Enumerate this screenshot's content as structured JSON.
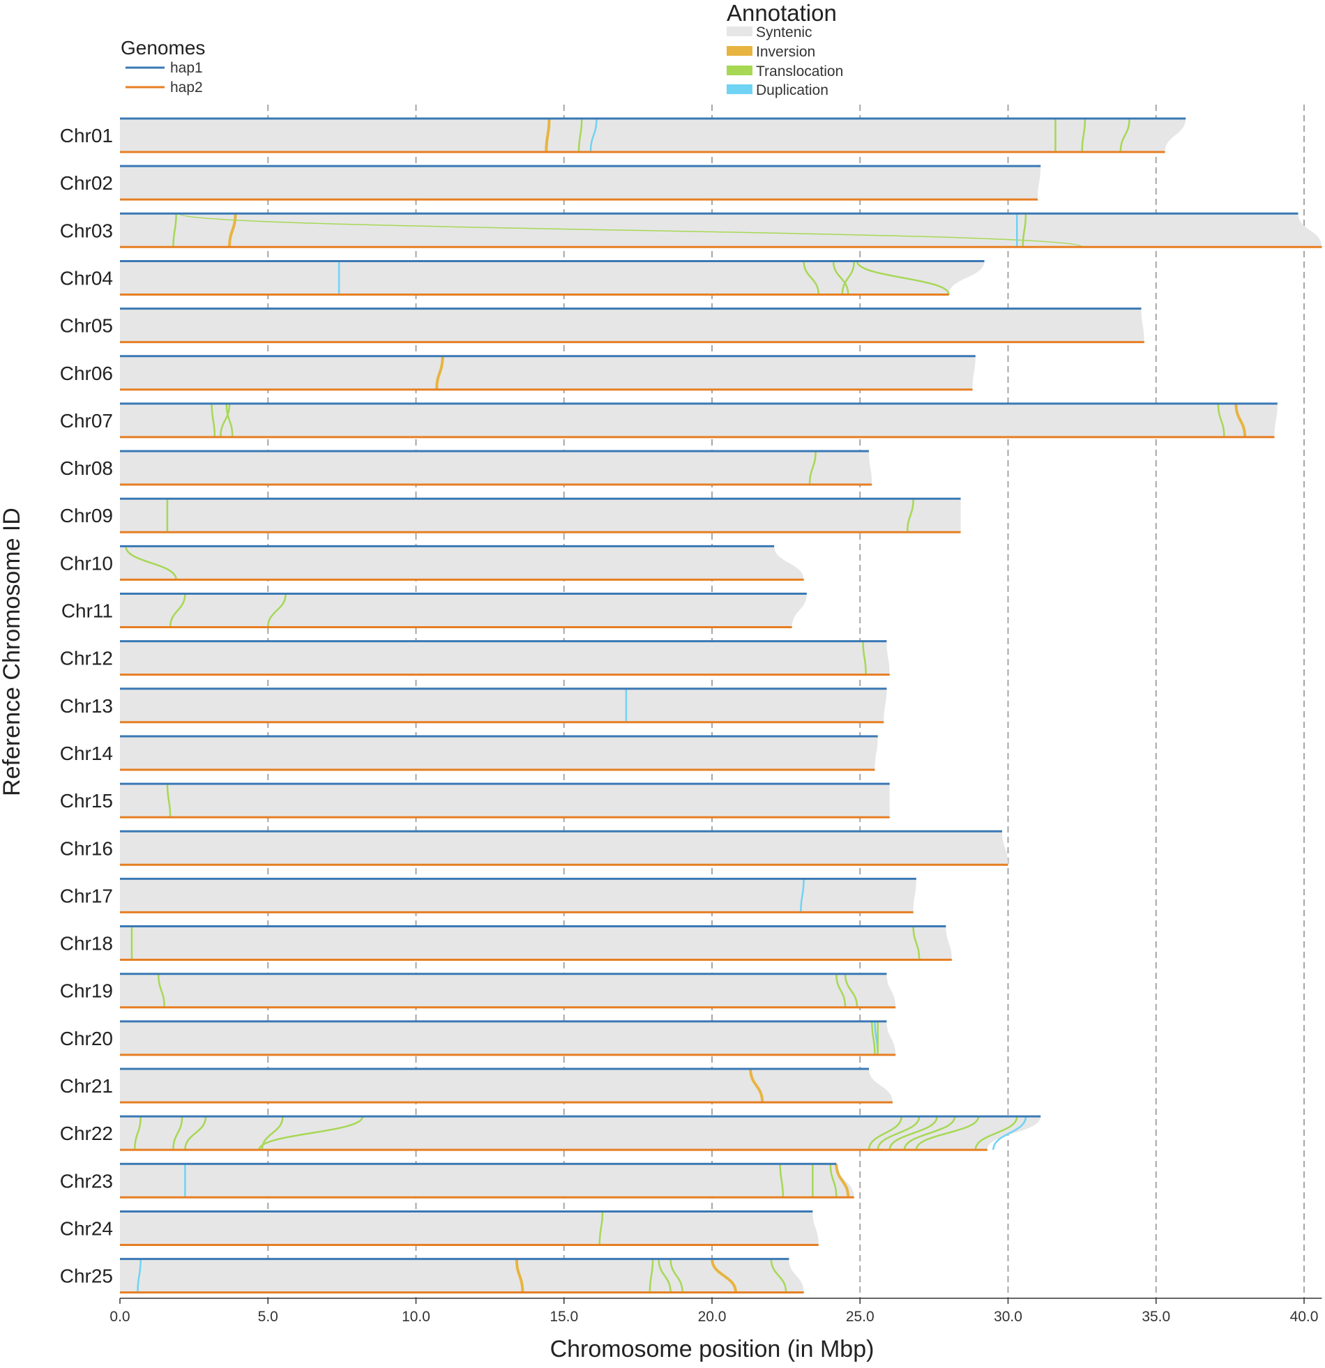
{
  "chart_data": {
    "type": "synteny",
    "xlabel": "Chromosome position (in Mbp)",
    "ylabel": "Reference Chromosome ID",
    "xlim": [
      0,
      40.5
    ],
    "xticks": [
      0,
      5,
      10,
      15,
      20,
      25,
      30,
      35,
      40
    ],
    "xtick_labels": [
      "0.0",
      "5.0",
      "10.0",
      "15.0",
      "20.0",
      "25.0",
      "30.0",
      "35.0",
      "40.0"
    ],
    "grid": "vertical dashed at each 5 Mbp",
    "genomes_legend": {
      "title": "Genomes",
      "items": [
        {
          "label": "hap1",
          "color": "#3a78b4"
        },
        {
          "label": "hap2",
          "color": "#e67e22"
        }
      ]
    },
    "annotation_legend": {
      "title": "Annotation",
      "items": [
        {
          "label": "Syntenic",
          "color": "#e6e6e6"
        },
        {
          "label": "Inversion",
          "color": "#e8b440"
        },
        {
          "label": "Translocation",
          "color": "#a6d854"
        },
        {
          "label": "Duplication",
          "color": "#6fd3f3"
        }
      ]
    },
    "chromosomes": [
      {
        "id": "Chr01",
        "hap1": 36.0,
        "hap2": 35.3,
        "events": [
          {
            "type": "inv",
            "h1": 14.5,
            "h2": 14.4
          },
          {
            "type": "trans",
            "h1": 15.6,
            "h2": 15.5
          },
          {
            "type": "dup",
            "h1": 16.1,
            "h2": 15.9
          },
          {
            "type": "trans",
            "h1": 31.6,
            "h2": 31.6
          },
          {
            "type": "trans",
            "h1": 32.6,
            "h2": 32.5
          },
          {
            "type": "trans",
            "h1": 34.1,
            "h2": 33.8
          }
        ]
      },
      {
        "id": "Chr02",
        "hap1": 31.1,
        "hap2": 31.0,
        "events": []
      },
      {
        "id": "Chr03",
        "hap1": 39.8,
        "hap2": 40.6,
        "events": [
          {
            "type": "trans",
            "h1": 1.9,
            "h2": 1.8
          },
          {
            "type": "inv",
            "h1": 3.9,
            "h2": 3.7
          },
          {
            "type": "trans",
            "h1": 2.0,
            "h2": 32.5
          },
          {
            "type": "dup",
            "h1": 30.3,
            "h2": 30.3
          },
          {
            "type": "trans",
            "h1": 30.6,
            "h2": 30.5
          }
        ]
      },
      {
        "id": "Chr04",
        "hap1": 29.2,
        "hap2": 28.0,
        "events": [
          {
            "type": "dup",
            "h1": 7.4,
            "h2": 7.4
          },
          {
            "type": "trans",
            "h1": 23.1,
            "h2": 23.6
          },
          {
            "type": "trans",
            "h1": 24.1,
            "h2": 24.6
          },
          {
            "type": "trans",
            "h1": 24.8,
            "h2": 24.4
          },
          {
            "type": "trans",
            "h1": 24.9,
            "h2": 28.0
          }
        ]
      },
      {
        "id": "Chr05",
        "hap1": 34.5,
        "hap2": 34.6,
        "events": []
      },
      {
        "id": "Chr06",
        "hap1": 28.9,
        "hap2": 28.8,
        "events": [
          {
            "type": "inv",
            "h1": 10.9,
            "h2": 10.7
          }
        ]
      },
      {
        "id": "Chr07",
        "hap1": 39.1,
        "hap2": 39.0,
        "events": [
          {
            "type": "trans",
            "h1": 3.1,
            "h2": 3.2
          },
          {
            "type": "trans",
            "h1": 3.6,
            "h2": 3.8
          },
          {
            "type": "trans",
            "h1": 3.7,
            "h2": 3.4
          },
          {
            "type": "trans",
            "h1": 37.1,
            "h2": 37.3
          },
          {
            "type": "inv",
            "h1": 37.7,
            "h2": 38.0
          }
        ]
      },
      {
        "id": "Chr08",
        "hap1": 25.3,
        "hap2": 25.4,
        "events": [
          {
            "type": "trans",
            "h1": 23.5,
            "h2": 23.3
          }
        ]
      },
      {
        "id": "Chr09",
        "hap1": 28.4,
        "hap2": 28.4,
        "events": [
          {
            "type": "trans",
            "h1": 1.6,
            "h2": 1.6
          },
          {
            "type": "trans",
            "h1": 26.8,
            "h2": 26.6
          }
        ]
      },
      {
        "id": "Chr10",
        "hap1": 22.1,
        "hap2": 23.1,
        "events": [
          {
            "type": "trans",
            "h1": 0.2,
            "h2": 1.9
          }
        ]
      },
      {
        "id": "Chr11",
        "hap1": 23.2,
        "hap2": 22.7,
        "events": [
          {
            "type": "trans",
            "h1": 2.2,
            "h2": 1.7
          },
          {
            "type": "trans",
            "h1": 5.6,
            "h2": 5.0
          }
        ]
      },
      {
        "id": "Chr12",
        "hap1": 25.9,
        "hap2": 26.0,
        "events": [
          {
            "type": "trans",
            "h1": 25.1,
            "h2": 25.2
          }
        ]
      },
      {
        "id": "Chr13",
        "hap1": 25.9,
        "hap2": 25.8,
        "events": [
          {
            "type": "dup",
            "h1": 17.1,
            "h2": 17.1
          }
        ]
      },
      {
        "id": "Chr14",
        "hap1": 25.6,
        "hap2": 25.5,
        "events": []
      },
      {
        "id": "Chr15",
        "hap1": 26.0,
        "hap2": 26.0,
        "events": [
          {
            "type": "trans",
            "h1": 1.6,
            "h2": 1.7
          }
        ]
      },
      {
        "id": "Chr16",
        "hap1": 29.8,
        "hap2": 30.0,
        "events": []
      },
      {
        "id": "Chr17",
        "hap1": 26.9,
        "hap2": 26.8,
        "events": [
          {
            "type": "dup",
            "h1": 23.1,
            "h2": 23.0
          }
        ]
      },
      {
        "id": "Chr18",
        "hap1": 27.9,
        "hap2": 28.1,
        "events": [
          {
            "type": "trans",
            "h1": 0.4,
            "h2": 0.4
          },
          {
            "type": "trans",
            "h1": 26.8,
            "h2": 27.0
          }
        ]
      },
      {
        "id": "Chr19",
        "hap1": 25.9,
        "hap2": 26.2,
        "events": [
          {
            "type": "trans",
            "h1": 1.3,
            "h2": 1.5
          },
          {
            "type": "trans",
            "h1": 24.2,
            "h2": 24.5
          },
          {
            "type": "trans",
            "h1": 24.5,
            "h2": 24.9
          }
        ]
      },
      {
        "id": "Chr20",
        "hap1": 25.9,
        "hap2": 26.2,
        "events": [
          {
            "type": "trans",
            "h1": 25.4,
            "h2": 25.5
          },
          {
            "type": "dup",
            "h1": 25.5,
            "h2": 25.6
          },
          {
            "type": "trans",
            "h1": 25.6,
            "h2": 25.6
          }
        ]
      },
      {
        "id": "Chr21",
        "hap1": 25.3,
        "hap2": 26.1,
        "events": [
          {
            "type": "inv",
            "h1": 21.3,
            "h2": 21.7
          }
        ]
      },
      {
        "id": "Chr22",
        "hap1": 31.1,
        "hap2": 29.3,
        "events": [
          {
            "type": "trans",
            "h1": 0.7,
            "h2": 0.5
          },
          {
            "type": "trans",
            "h1": 2.1,
            "h2": 1.8
          },
          {
            "type": "trans",
            "h1": 2.9,
            "h2": 2.2
          },
          {
            "type": "trans",
            "h1": 5.5,
            "h2": 4.8
          },
          {
            "type": "trans",
            "h1": 8.2,
            "h2": 4.7
          },
          {
            "type": "trans",
            "h1": 26.4,
            "h2": 25.3
          },
          {
            "type": "trans",
            "h1": 27.0,
            "h2": 25.6
          },
          {
            "type": "trans",
            "h1": 27.6,
            "h2": 26.0
          },
          {
            "type": "trans",
            "h1": 28.2,
            "h2": 26.5
          },
          {
            "type": "trans",
            "h1": 29.0,
            "h2": 26.9
          },
          {
            "type": "trans",
            "h1": 30.3,
            "h2": 28.9
          },
          {
            "type": "dup",
            "h1": 30.6,
            "h2": 29.5
          }
        ]
      },
      {
        "id": "Chr23",
        "hap1": 24.2,
        "hap2": 24.8,
        "events": [
          {
            "type": "dup",
            "h1": 2.2,
            "h2": 2.2
          },
          {
            "type": "trans",
            "h1": 22.3,
            "h2": 22.4
          },
          {
            "type": "trans",
            "h1": 23.4,
            "h2": 23.4
          },
          {
            "type": "trans",
            "h1": 24.0,
            "h2": 24.2
          },
          {
            "type": "inv",
            "h1": 24.2,
            "h2": 24.6
          }
        ]
      },
      {
        "id": "Chr24",
        "hap1": 23.4,
        "hap2": 23.6,
        "events": [
          {
            "type": "trans",
            "h1": 16.3,
            "h2": 16.2
          }
        ]
      },
      {
        "id": "Chr25",
        "hap1": 22.6,
        "hap2": 23.1,
        "events": [
          {
            "type": "dup",
            "h1": 0.7,
            "h2": 0.6
          },
          {
            "type": "inv",
            "h1": 13.4,
            "h2": 13.6
          },
          {
            "type": "trans",
            "h1": 18.0,
            "h2": 17.9
          },
          {
            "type": "trans",
            "h1": 18.2,
            "h2": 18.6
          },
          {
            "type": "trans",
            "h1": 18.6,
            "h2": 19.0
          },
          {
            "type": "inv",
            "h1": 20.0,
            "h2": 20.8
          },
          {
            "type": "trans",
            "h1": 22.0,
            "h2": 22.5
          }
        ]
      }
    ]
  }
}
